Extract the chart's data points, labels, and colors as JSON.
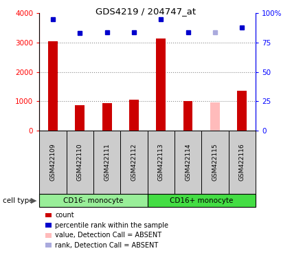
{
  "title": "GDS4219 / 204747_at",
  "samples": [
    "GSM422109",
    "GSM422110",
    "GSM422111",
    "GSM422112",
    "GSM422113",
    "GSM422114",
    "GSM422115",
    "GSM422116"
  ],
  "counts": [
    3050,
    860,
    930,
    1060,
    3150,
    1000,
    950,
    1350
  ],
  "percentiles": [
    95,
    83,
    84,
    84,
    95,
    84,
    84,
    88
  ],
  "absent_mask": [
    false,
    false,
    false,
    false,
    false,
    false,
    true,
    false
  ],
  "bar_color_present": "#cc0000",
  "bar_color_absent": "#ffbbbb",
  "dot_color_present": "#0000cc",
  "dot_color_absent": "#aaaadd",
  "ylim_left": [
    0,
    4000
  ],
  "ylim_right": [
    0,
    100
  ],
  "yticks_left": [
    0,
    1000,
    2000,
    3000,
    4000
  ],
  "yticks_right": [
    0,
    25,
    50,
    75,
    100
  ],
  "yticklabels_right": [
    "0",
    "25",
    "50",
    "75",
    "100%"
  ],
  "groups": [
    {
      "label": "CD16- monocyte",
      "start": 0,
      "end": 3,
      "color": "#99ee99"
    },
    {
      "label": "CD16+ monocyte",
      "start": 4,
      "end": 7,
      "color": "#44dd44"
    }
  ],
  "cell_type_label": "cell type",
  "legend_items": [
    {
      "label": "count",
      "color": "#cc0000"
    },
    {
      "label": "percentile rank within the sample",
      "color": "#0000cc"
    },
    {
      "label": "value, Detection Call = ABSENT",
      "color": "#ffbbbb"
    },
    {
      "label": "rank, Detection Call = ABSENT",
      "color": "#aaaadd"
    }
  ],
  "bar_width": 0.35,
  "sample_box_color": "#cccccc",
  "grid_dotted_color": "#888888"
}
